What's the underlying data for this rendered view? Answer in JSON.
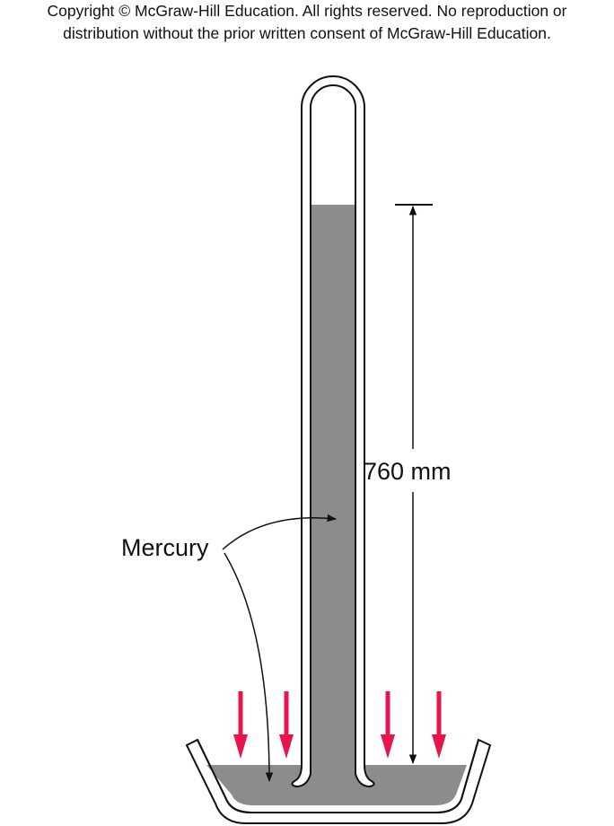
{
  "copyright": {
    "line1": "Copyright © McGraw-Hill Education.  All rights reserved. No reproduction or",
    "line2": "distribution without the prior written consent of McGraw-Hill Education."
  },
  "labels": {
    "height": "760 mm",
    "substance": "Mercury"
  },
  "colors": {
    "mercury": "#8c8c8c",
    "pressure_arrows": "#e8154c",
    "outline": "#111111"
  }
}
